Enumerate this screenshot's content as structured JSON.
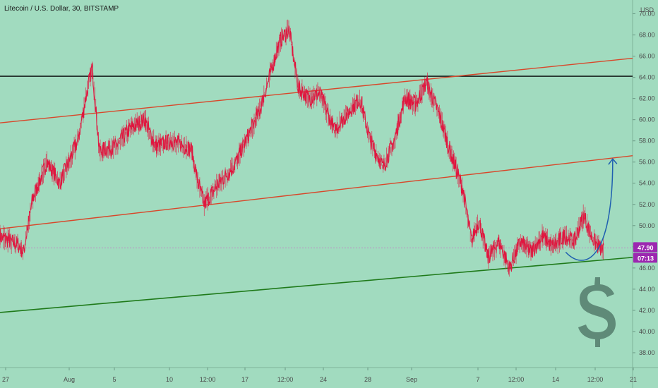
{
  "header": {
    "title": "Litecoin / U.S. Dollar, 30, BITSTAMP",
    "unit_label": "USD"
  },
  "price_tags": {
    "last_price": "47.90",
    "countdown": "07:13",
    "tag_color": "#9c27b0"
  },
  "colors": {
    "background": "#a1dbbf",
    "candles": "#e0163f",
    "resistance": "#000000",
    "channel": "#d8472a",
    "support": "#1f7a1a",
    "projection": "#1f5fb0",
    "dollar_sign": "#5f8a78"
  },
  "chart_data": {
    "type": "line",
    "symbol": "LTCUSD",
    "interval": "30",
    "ylim": [
      36.6,
      71.3
    ],
    "y_ticks": [
      "70.00",
      "68.00",
      "66.00",
      "64.00",
      "62.00",
      "60.00",
      "58.00",
      "56.00",
      "54.00",
      "52.00",
      "50.00",
      "48.00",
      "46.00",
      "44.00",
      "42.00",
      "40.00",
      "38.00"
    ],
    "x_ticks": [
      "27",
      "Aug",
      "5",
      "10",
      "12:00",
      "17",
      "12:00",
      "24",
      "28",
      "Sep",
      "7",
      "12:00",
      "14",
      "12:00",
      "21"
    ],
    "x_range": [
      0,
      25
    ],
    "price_path": [
      [
        0,
        49.0
      ],
      [
        1,
        48.2
      ],
      [
        1.3,
        47.5
      ],
      [
        1.8,
        52.5
      ],
      [
        2.6,
        56.0
      ],
      [
        3.3,
        54.0
      ],
      [
        4.3,
        58.0
      ],
      [
        4.8,
        62.5
      ],
      [
        5.1,
        65.0
      ],
      [
        5.5,
        57.0
      ],
      [
        6.4,
        57.5
      ],
      [
        7.1,
        59.0
      ],
      [
        8.0,
        60.0
      ],
      [
        8.6,
        57.5
      ],
      [
        9.5,
        58.0
      ],
      [
        10.6,
        57.2
      ],
      [
        10.9,
        54.5
      ],
      [
        11.3,
        52.0
      ],
      [
        12.1,
        54.0
      ],
      [
        12.9,
        55.5
      ],
      [
        13.6,
        58.0
      ],
      [
        14.4,
        61.0
      ],
      [
        14.9,
        64.0
      ],
      [
        15.5,
        67.5
      ],
      [
        16.0,
        68.5
      ],
      [
        16.5,
        63.0
      ],
      [
        17.1,
        62.0
      ],
      [
        17.7,
        62.5
      ],
      [
        18.5,
        59.0
      ],
      [
        19.2,
        60.5
      ],
      [
        19.9,
        62.0
      ],
      [
        20.5,
        58.0
      ],
      [
        21.2,
        55.5
      ],
      [
        21.8,
        58.0
      ],
      [
        22.4,
        62.0
      ],
      [
        23.0,
        61.5
      ],
      [
        23.6,
        63.5
      ],
      [
        24.2,
        61.0
      ],
      [
        25.0,
        56.5
      ]
    ],
    "price_path_sep": [
      [
        0.0,
        56.5
      ],
      [
        0.6,
        53.5
      ],
      [
        1.1,
        48.5
      ],
      [
        1.5,
        50.5
      ],
      [
        2.0,
        47.0
      ],
      [
        2.6,
        48.5
      ],
      [
        3.2,
        46.0
      ],
      [
        3.8,
        48.5
      ],
      [
        4.4,
        47.5
      ],
      [
        5.0,
        49.0
      ],
      [
        5.6,
        48.0
      ],
      [
        6.2,
        49.0
      ],
      [
        6.8,
        48.5
      ],
      [
        7.3,
        51.0
      ],
      [
        7.7,
        49.0
      ],
      [
        8.1,
        48.0
      ],
      [
        8.4,
        47.6
      ]
    ],
    "sep_x_offset": 25,
    "x_range_total": [
      0,
      35
    ],
    "last_price": 47.9,
    "lines": [
      {
        "name": "resistance",
        "kind": "horizontal",
        "y": 64.1
      },
      {
        "name": "upper-channel",
        "kind": "trend",
        "points": [
          [
            0,
            59.7
          ],
          [
            35,
            65.8
          ]
        ]
      },
      {
        "name": "lower-channel",
        "kind": "trend",
        "points": [
          [
            0,
            49.7
          ],
          [
            35,
            56.6
          ]
        ]
      },
      {
        "name": "support",
        "kind": "trend",
        "points": [
          [
            0,
            41.8
          ],
          [
            35,
            47.0
          ]
        ]
      }
    ],
    "projection": {
      "points": [
        [
          31.3,
          47.5
        ],
        [
          32.3,
          46.6
        ],
        [
          33.6,
          48.5
        ],
        [
          33.9,
          56.3
        ]
      ]
    },
    "grid": false,
    "legend": "none"
  }
}
